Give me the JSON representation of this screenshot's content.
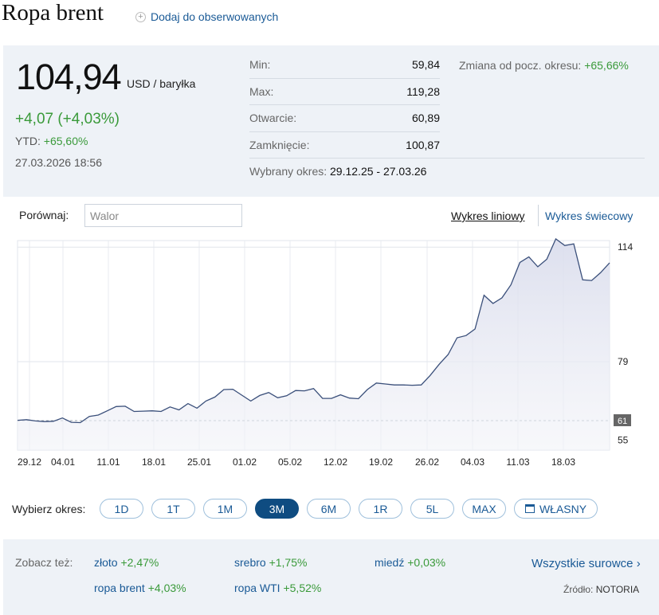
{
  "header": {
    "title": "Ropa brent",
    "follow_label": "Dodaj do obserwowanych"
  },
  "quote": {
    "price": "104,94",
    "unit": "USD / baryłka",
    "change": "+4,07 (+4,03%)",
    "ytd_label": "YTD:",
    "ytd_value": "+65,60%",
    "timestamp": "27.03.2026 18:56"
  },
  "stats": [
    {
      "label": "Min:",
      "value": "59,84"
    },
    {
      "label": "Max:",
      "value": "119,28"
    },
    {
      "label": "Otwarcie:",
      "value": "60,89"
    },
    {
      "label": "Zamknięcie:",
      "value": "100,87"
    }
  ],
  "range": {
    "label": "Wybrany okres:",
    "value": "29.12.25 - 27.03.26"
  },
  "since": {
    "label": "Zmiana od pocz. okresu:",
    "value": "+65,66%"
  },
  "compare": {
    "label": "Porównaj:",
    "placeholder": "Walor"
  },
  "view": {
    "line_label": "Wykres liniowy",
    "candle_label": "Wykres świecowy"
  },
  "chart_data": {
    "type": "area",
    "x_tick_labels": [
      "29.12",
      "04.01",
      "11.01",
      "18.01",
      "25.01",
      "01.02",
      "05.02",
      "12.02",
      "19.02",
      "26.02",
      "04.03",
      "11.03",
      "18.03"
    ],
    "y_tick_labels": [
      "114",
      "79",
      "55"
    ],
    "reference_label": "61",
    "grid": true,
    "values": [
      61.1,
      61.3,
      60.9,
      60.7,
      60.8,
      61.8,
      60.5,
      60.4,
      62.3,
      62.7,
      64.0,
      65.3,
      65.4,
      63.8,
      63.9,
      64.0,
      63.8,
      65.2,
      64.3,
      66.2,
      64.8,
      67.0,
      68.2,
      70.5,
      70.6,
      68.8,
      67.0,
      68.7,
      69.6,
      68.0,
      68.6,
      70.2,
      70.1,
      70.8,
      67.8,
      67.8,
      68.9,
      67.9,
      67.7,
      70.5,
      72.5,
      72.2,
      71.9,
      71.9,
      71.8,
      71.9,
      74.8,
      78.2,
      81.2,
      86.3,
      87.0,
      89.0,
      99.3,
      96.8,
      98.5,
      102.5,
      109.3,
      111.0,
      108.0,
      110.3,
      116.5,
      114.5,
      115.0,
      104.0,
      103.8,
      106.2,
      109.2
    ]
  },
  "periods": {
    "label": "Wybierz okres:",
    "options": [
      "1D",
      "1T",
      "1M",
      "3M",
      "6M",
      "1R",
      "5L",
      "MAX",
      "WŁASNY"
    ],
    "selected": "3M"
  },
  "footer": {
    "see_also_label": "Zobacz też:",
    "links": [
      {
        "name": "złoto",
        "change": "+2,47%"
      },
      {
        "name": "srebro",
        "change": "+1,75%"
      },
      {
        "name": "miedź",
        "change": "+0,03%"
      },
      {
        "name": "ropa brent",
        "change": "+4,03%"
      },
      {
        "name": "ropa WTI",
        "change": "+5,52%"
      }
    ],
    "all_label": "Wszystkie surowce ›",
    "source_label": "Źródło:",
    "source_value": "NOTORIA"
  },
  "colors": {
    "accent": "#0f4c81",
    "link": "#1a5a96",
    "positive": "#3a9a3a",
    "line": "#3a4f7a",
    "panel_bg": "#eef2f7"
  }
}
